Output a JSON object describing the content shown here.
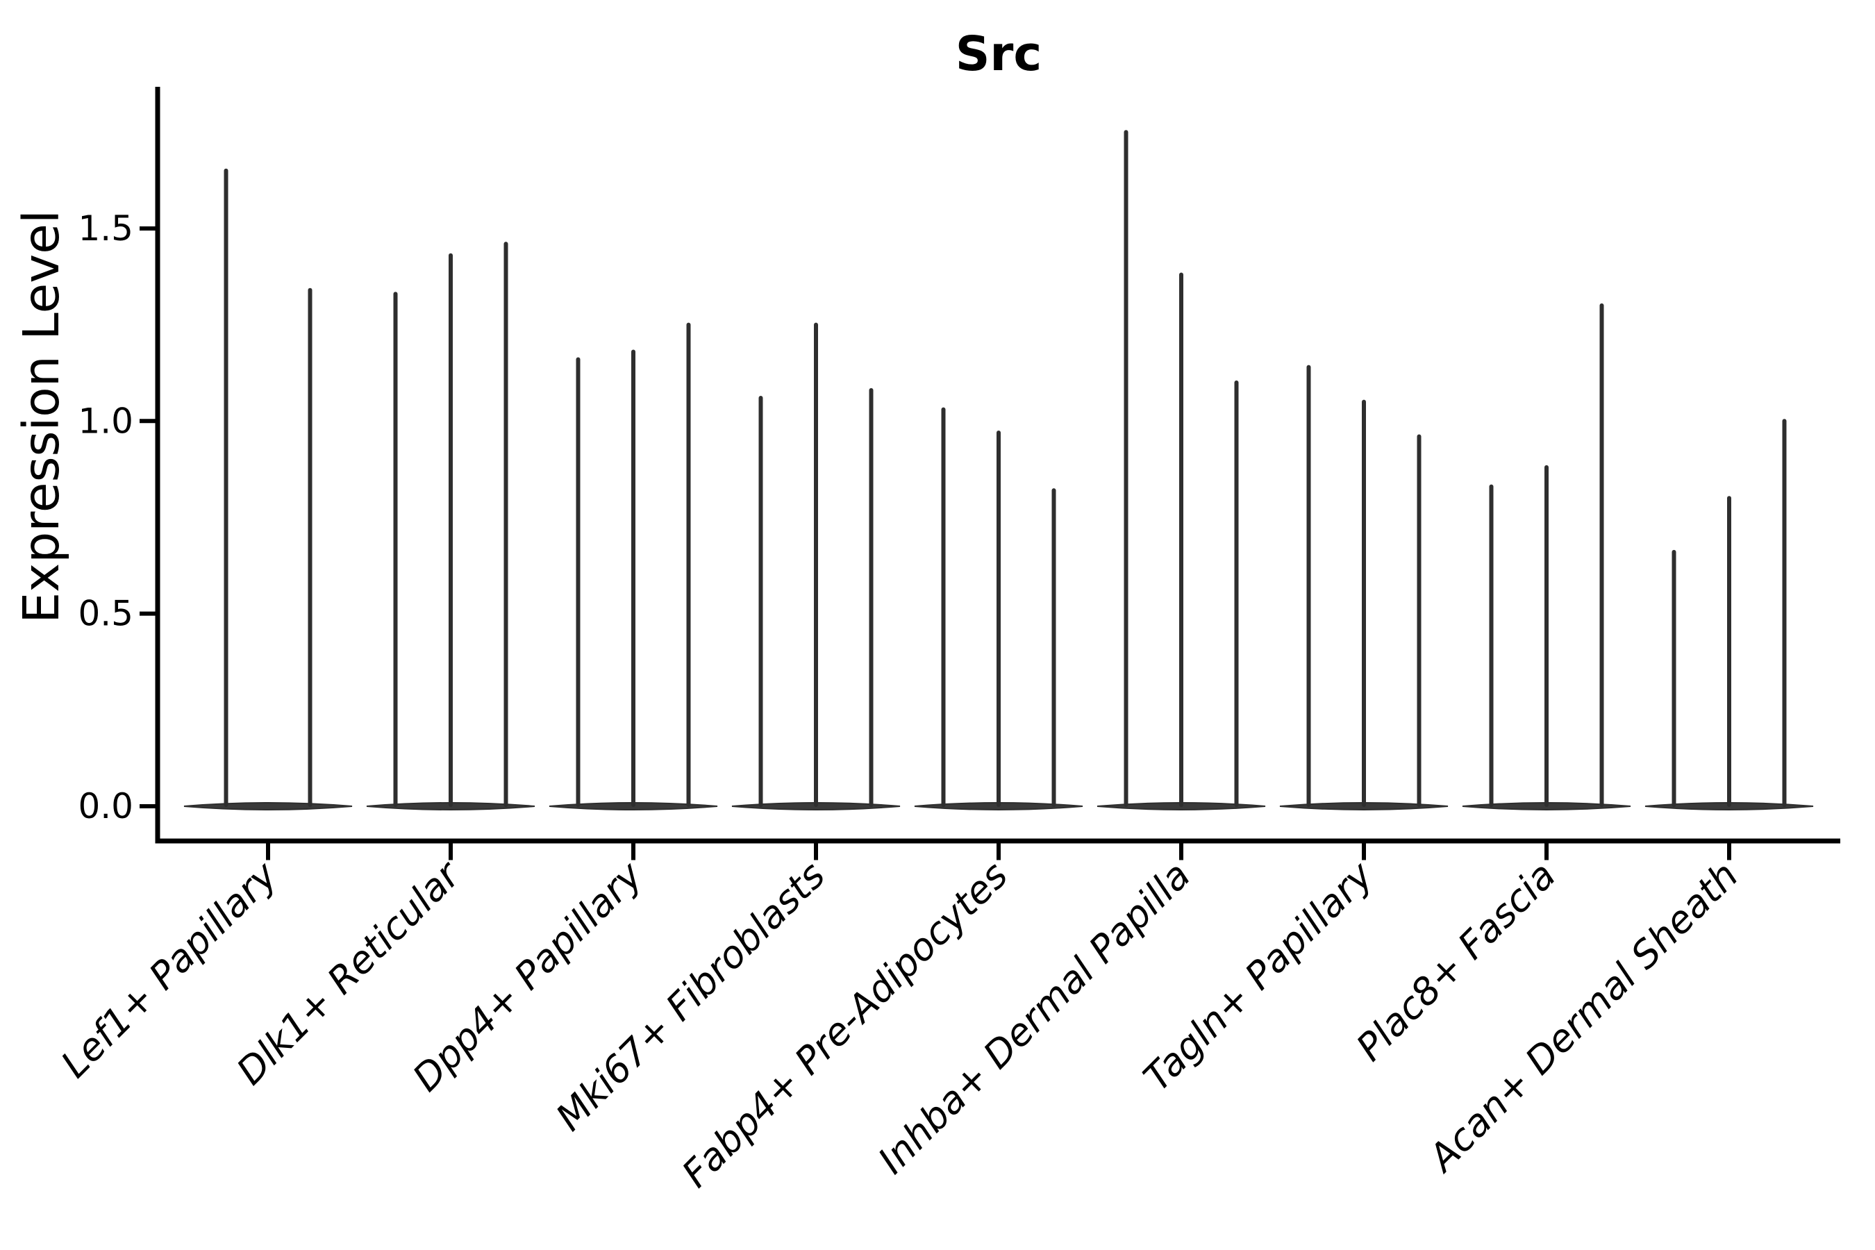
{
  "chart_data": {
    "type": "violin",
    "title": "Src",
    "ylabel": "Expression Level",
    "xlabel": "",
    "yticks": [
      0.0,
      0.5,
      1.0,
      1.5
    ],
    "ylim": [
      0.0,
      1.86
    ],
    "grid": false,
    "legend": null,
    "colors": {
      "violin_fill": "#3a3a3a",
      "violin_stroke": "#2e2e2e",
      "spine": "#000000",
      "text": "#000000",
      "background": "#ffffff"
    },
    "categories": [
      "Lef1+ Papillary",
      "Dlk1+ Reticular",
      "Dpp4+ Papillary",
      "Mki67+ Fibroblasts",
      "Fabp4+ Pre-Adipocytes",
      "Inhba+ Dermal Papilla",
      "Tagln+ Papillary",
      "Plac8+ Fascia",
      "Acan+ Dermal Sheath"
    ],
    "groups": [
      {
        "category": "Lef1+ Papillary",
        "violin_peaks": [
          1.65,
          1.34
        ]
      },
      {
        "category": "Dlk1+ Reticular",
        "violin_peaks": [
          1.33,
          1.43,
          1.46
        ]
      },
      {
        "category": "Dpp4+ Papillary",
        "violin_peaks": [
          1.16,
          1.18,
          1.25
        ]
      },
      {
        "category": "Mki67+ Fibroblasts",
        "violin_peaks": [
          1.06,
          1.25,
          1.08
        ]
      },
      {
        "category": "Fabp4+ Pre-Adipocytes",
        "violin_peaks": [
          1.03,
          0.97,
          0.82
        ]
      },
      {
        "category": "Inhba+ Dermal Papilla",
        "violin_peaks": [
          1.75,
          1.38,
          1.1
        ]
      },
      {
        "category": "Tagln+ Papillary",
        "violin_peaks": [
          1.14,
          1.05,
          0.96
        ]
      },
      {
        "category": "Plac8+ Fascia",
        "violin_peaks": [
          0.83,
          0.88,
          1.3
        ]
      },
      {
        "category": "Acan+ Dermal Sheath",
        "violin_peaks": [
          0.66,
          0.8,
          1.0
        ]
      }
    ],
    "notes": "Needle-thin violins: density mass concentrated at 0 (wide flat base lens per category) with a thin spike rising to each violin's maximum expression value."
  }
}
